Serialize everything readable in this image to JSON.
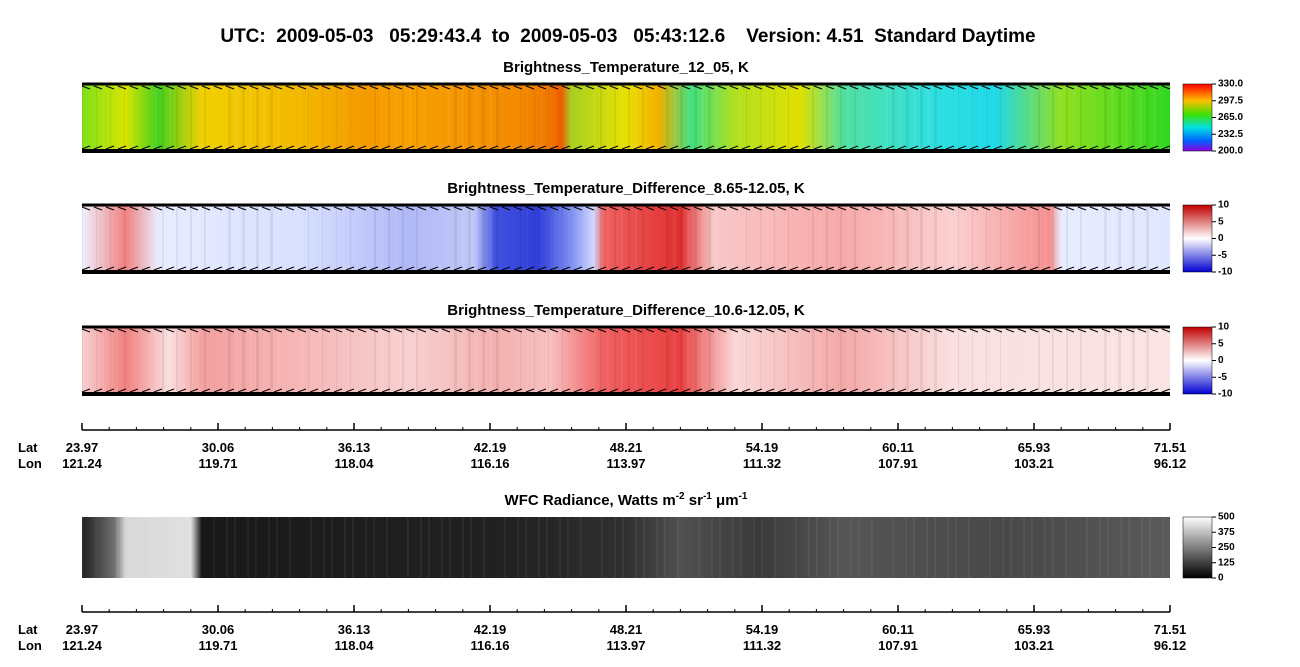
{
  "title": "UTC:  2009-05-03   05:29:43.4  to  2009-05-03   05:43:12.6    Version: 4.51  Standard Daytime",
  "panels": [
    {
      "title": "Brightness_Temperature_12_05, K",
      "colorbar_ticks": [
        "330.0",
        "297.5",
        "265.0",
        "232.5",
        "200.0"
      ]
    },
    {
      "title": "Brightness_Temperature_Difference_8.65-12.05, K",
      "colorbar_ticks": [
        "10",
        "5",
        "0",
        "-5",
        "-10"
      ]
    },
    {
      "title": "Brightness_Temperature_Difference_10.6-12.05, K",
      "colorbar_ticks": [
        "10",
        "5",
        "0",
        "-5",
        "-10"
      ]
    }
  ],
  "wfc": {
    "title_parts": [
      "WFC Radiance, Watts m",
      "-2",
      " sr",
      "-1",
      " μm",
      "-1"
    ],
    "colorbar_ticks": [
      "500",
      "375",
      "250",
      "125",
      "0"
    ]
  },
  "axes": [
    {
      "lat_label": "Lat",
      "lon_label": "Lon",
      "lat": [
        "23.97",
        "30.06",
        "36.13",
        "42.19",
        "48.21",
        "54.19",
        "60.11",
        "65.93",
        "71.51"
      ],
      "lon": [
        "121.24",
        "119.71",
        "118.04",
        "116.16",
        "113.97",
        "111.32",
        "107.91",
        "103.21",
        "96.12"
      ]
    },
    {
      "lat_label": "Lat",
      "lon_label": "Lon",
      "lat": [
        "23.97",
        "30.06",
        "36.13",
        "42.19",
        "48.21",
        "54.19",
        "60.11",
        "65.93",
        "71.51"
      ],
      "lon": [
        "121.24",
        "119.71",
        "118.04",
        "116.16",
        "113.97",
        "111.32",
        "107.91",
        "103.21",
        "96.12"
      ]
    }
  ]
}
